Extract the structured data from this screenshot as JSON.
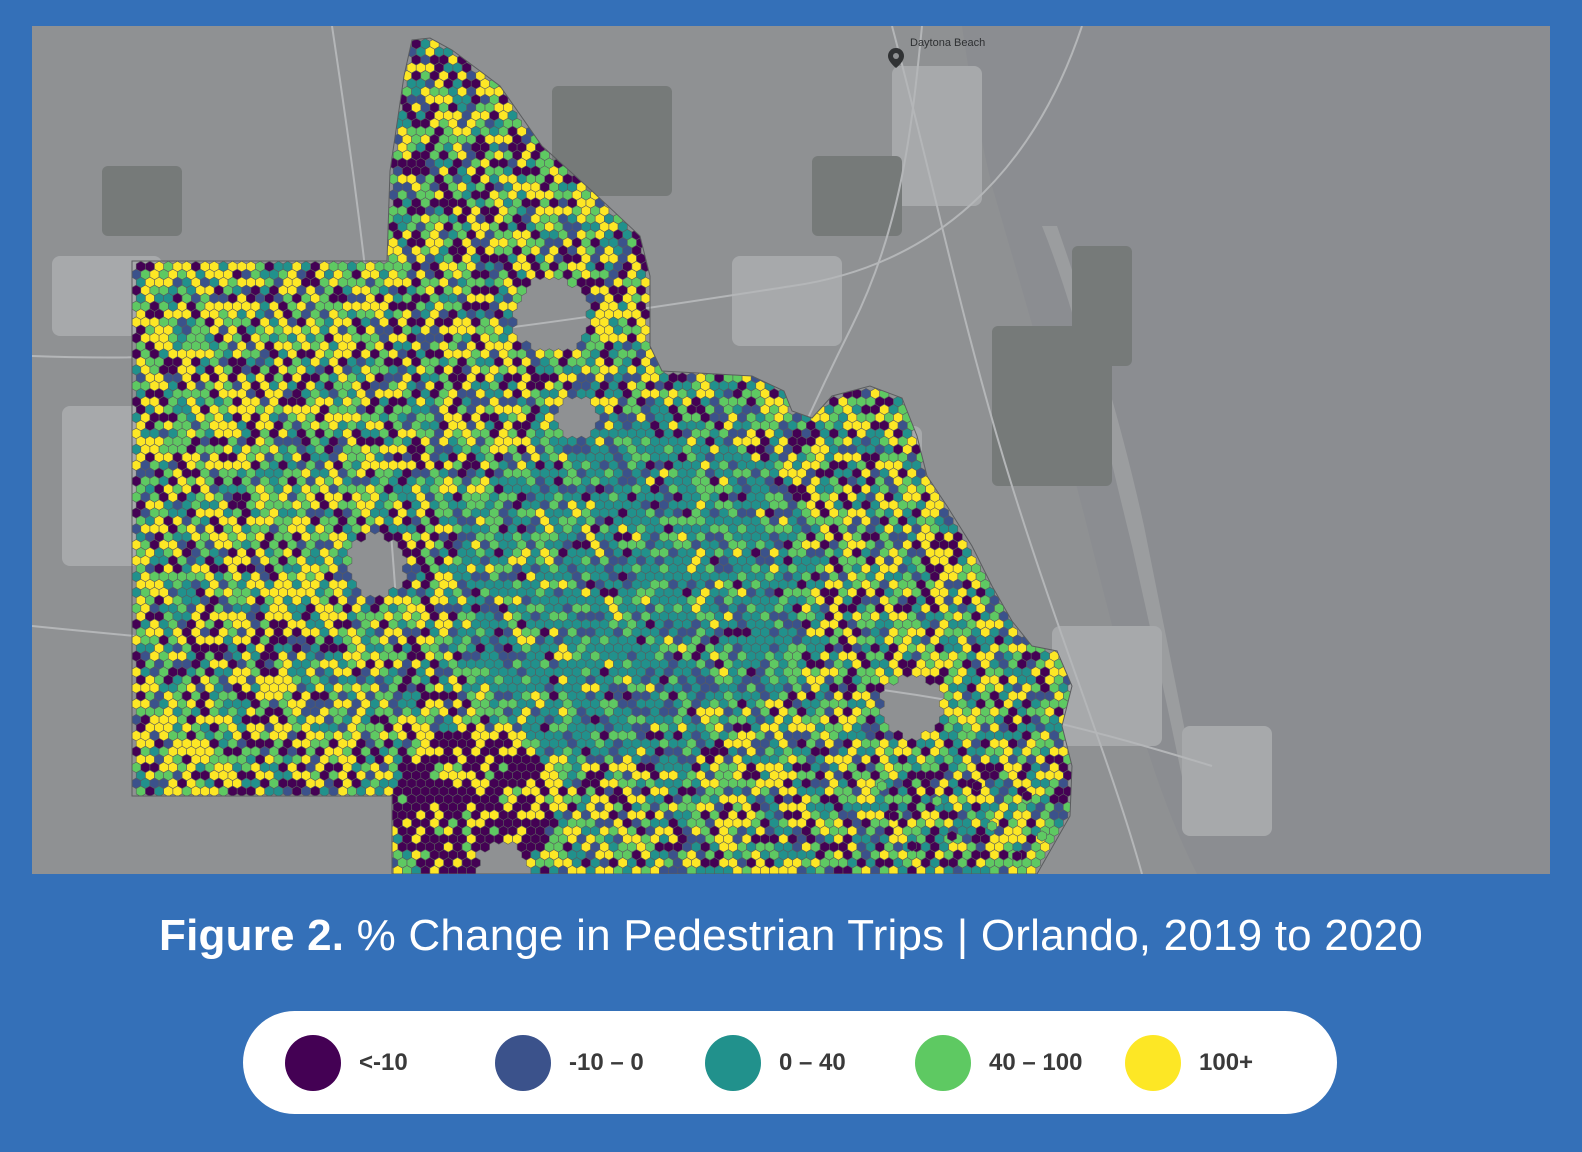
{
  "caption": {
    "figure_label": "Figure 2.",
    "title": "% Change in Pedestrian Trips | Orlando, 2019 to 2020"
  },
  "map": {
    "basemap_labels": [
      "Daytona Beach"
    ],
    "colors": {
      "land": "#8f9193",
      "ocean": "#8b8d91",
      "urban": "#a7a9ab",
      "parks": "#767a79",
      "water": "#8b8d91",
      "roads": "#b4b6b8"
    }
  },
  "legend": {
    "items": [
      {
        "label": "<-10",
        "color": "#440154"
      },
      {
        "label": "-10 – 0",
        "color": "#3b528b"
      },
      {
        "label": "0 – 40",
        "color": "#21918c"
      },
      {
        "label": "40 – 100",
        "color": "#5ec962"
      },
      {
        "label": "100+",
        "color": "#fde725"
      }
    ]
  }
}
